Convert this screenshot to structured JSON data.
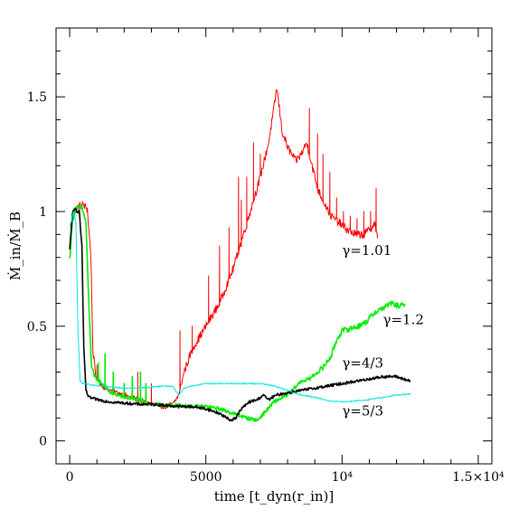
{
  "chart_data": {
    "type": "line",
    "xlabel": "time [t_dyn(r_in)]",
    "ylabel": "Ṁ_in/Ṁ_B",
    "xlim": [
      -500,
      15500
    ],
    "ylim": [
      -0.1,
      1.8
    ],
    "xticks": [
      {
        "v": 0,
        "label": "0"
      },
      {
        "v": 5000,
        "label": "5000"
      },
      {
        "v": 10000,
        "label": "10⁴"
      },
      {
        "v": 15000,
        "label": "1.5×10⁴"
      }
    ],
    "yticks": [
      {
        "v": 0,
        "label": "0"
      },
      {
        "v": 0.5,
        "label": "0.5"
      },
      {
        "v": 1,
        "label": "1"
      },
      {
        "v": 1.5,
        "label": "1.5"
      }
    ],
    "series": [
      {
        "name": "γ=1.01",
        "color": "#ff0000",
        "noise": 0.012,
        "points": [
          [
            0,
            0.79
          ],
          [
            100,
            0.99
          ],
          [
            300,
            1.02
          ],
          [
            500,
            1.03
          ],
          [
            650,
            1.01
          ],
          [
            780,
            0.8
          ],
          [
            850,
            0.4
          ],
          [
            950,
            0.28
          ],
          [
            1200,
            0.24
          ],
          [
            1500,
            0.22
          ],
          [
            2000,
            0.2
          ],
          [
            2500,
            0.18
          ],
          [
            3000,
            0.16
          ],
          [
            3500,
            0.15
          ],
          [
            3800,
            0.16
          ],
          [
            4000,
            0.2
          ],
          [
            4200,
            0.3
          ],
          [
            4500,
            0.4
          ],
          [
            5000,
            0.5
          ],
          [
            5500,
            0.6
          ],
          [
            6000,
            0.75
          ],
          [
            6500,
            0.95
          ],
          [
            7000,
            1.15
          ],
          [
            7300,
            1.3
          ],
          [
            7500,
            1.45
          ],
          [
            7600,
            1.54
          ],
          [
            7700,
            1.45
          ],
          [
            7800,
            1.35
          ],
          [
            8000,
            1.28
          ],
          [
            8300,
            1.22
          ],
          [
            8500,
            1.25
          ],
          [
            8700,
            1.3
          ],
          [
            8900,
            1.2
          ],
          [
            9100,
            1.1
          ],
          [
            9300,
            1.05
          ],
          [
            9600,
            0.98
          ],
          [
            9900,
            0.95
          ],
          [
            10200,
            0.92
          ],
          [
            10500,
            0.9
          ],
          [
            10800,
            0.9
          ],
          [
            11000,
            0.92
          ],
          [
            11200,
            0.95
          ],
          [
            11300,
            0.88
          ]
        ],
        "spikes": [
          [
            1000,
            0.33
          ],
          [
            1300,
            0.37
          ],
          [
            2500,
            0.3
          ],
          [
            2600,
            0.28
          ],
          [
            3000,
            0.25
          ],
          [
            4050,
            0.48
          ],
          [
            4500,
            0.5
          ],
          [
            5100,
            0.72
          ],
          [
            5500,
            0.85
          ],
          [
            5850,
            0.93
          ],
          [
            6200,
            1.15
          ],
          [
            6300,
            1.05
          ],
          [
            6500,
            1.15
          ],
          [
            6750,
            1.3
          ],
          [
            7000,
            1.25
          ],
          [
            8800,
            1.45
          ],
          [
            9100,
            1.34
          ],
          [
            9300,
            1.25
          ],
          [
            9550,
            1.17
          ],
          [
            9800,
            1.06
          ],
          [
            10050,
            1.0
          ],
          [
            10300,
            0.98
          ],
          [
            10550,
            0.97
          ],
          [
            10800,
            1.0
          ],
          [
            11050,
            1.0
          ],
          [
            11250,
            1.1
          ]
        ]
      },
      {
        "name": "γ=1.2",
        "color": "#00ee00",
        "noise": 0.008,
        "points": [
          [
            0,
            0.79
          ],
          [
            100,
            0.97
          ],
          [
            250,
            1.01
          ],
          [
            450,
            1.02
          ],
          [
            600,
            0.95
          ],
          [
            700,
            0.6
          ],
          [
            800,
            0.33
          ],
          [
            900,
            0.28
          ],
          [
            1200,
            0.25
          ],
          [
            1500,
            0.21
          ],
          [
            2000,
            0.19
          ],
          [
            2500,
            0.18
          ],
          [
            3000,
            0.16
          ],
          [
            3500,
            0.155
          ],
          [
            4000,
            0.155
          ],
          [
            4500,
            0.15
          ],
          [
            5000,
            0.15
          ],
          [
            5500,
            0.14
          ],
          [
            6000,
            0.12
          ],
          [
            6500,
            0.1
          ],
          [
            6900,
            0.09
          ],
          [
            7200,
            0.13
          ],
          [
            7500,
            0.17
          ],
          [
            8000,
            0.2
          ],
          [
            8500,
            0.26
          ],
          [
            8800,
            0.27
          ],
          [
            9000,
            0.29
          ],
          [
            9300,
            0.32
          ],
          [
            9600,
            0.37
          ],
          [
            9800,
            0.44
          ],
          [
            10000,
            0.48
          ],
          [
            10300,
            0.49
          ],
          [
            10600,
            0.5
          ],
          [
            10900,
            0.52
          ],
          [
            11200,
            0.56
          ],
          [
            11500,
            0.58
          ],
          [
            11800,
            0.6
          ],
          [
            12000,
            0.59
          ],
          [
            12300,
            0.59
          ]
        ],
        "spikes": [
          [
            1050,
            0.34
          ],
          [
            1300,
            0.38
          ],
          [
            1600,
            0.3
          ],
          [
            2000,
            0.25
          ],
          [
            2300,
            0.28
          ],
          [
            2600,
            0.3
          ],
          [
            2800,
            0.25
          ]
        ]
      },
      {
        "name": "γ=4/3",
        "color": "#000000",
        "noise": 0.006,
        "points": [
          [
            0,
            0.83
          ],
          [
            100,
            0.99
          ],
          [
            200,
            1.01
          ],
          [
            350,
            1.0
          ],
          [
            450,
            0.85
          ],
          [
            520,
            0.4
          ],
          [
            600,
            0.22
          ],
          [
            700,
            0.19
          ],
          [
            1000,
            0.18
          ],
          [
            1500,
            0.17
          ],
          [
            2000,
            0.165
          ],
          [
            2500,
            0.16
          ],
          [
            3000,
            0.16
          ],
          [
            3500,
            0.155
          ],
          [
            4000,
            0.15
          ],
          [
            4500,
            0.15
          ],
          [
            5000,
            0.14
          ],
          [
            5500,
            0.12
          ],
          [
            5900,
            0.09
          ],
          [
            6100,
            0.1
          ],
          [
            6300,
            0.14
          ],
          [
            6600,
            0.17
          ],
          [
            6900,
            0.18
          ],
          [
            7100,
            0.2
          ],
          [
            7300,
            0.18
          ],
          [
            7600,
            0.2
          ],
          [
            8000,
            0.21
          ],
          [
            8500,
            0.22
          ],
          [
            9000,
            0.23
          ],
          [
            9500,
            0.24
          ],
          [
            10000,
            0.25
          ],
          [
            10500,
            0.26
          ],
          [
            11000,
            0.27
          ],
          [
            11500,
            0.28
          ],
          [
            12000,
            0.28
          ],
          [
            12500,
            0.26
          ]
        ]
      },
      {
        "name": "γ=5/3",
        "color": "#00e5e5",
        "noise": 0.003,
        "points": [
          [
            0,
            0.93
          ],
          [
            150,
            1.0
          ],
          [
            230,
            0.95
          ],
          [
            300,
            0.5
          ],
          [
            380,
            0.26
          ],
          [
            500,
            0.25
          ],
          [
            1000,
            0.24
          ],
          [
            1500,
            0.235
          ],
          [
            2000,
            0.23
          ],
          [
            2500,
            0.23
          ],
          [
            3000,
            0.235
          ],
          [
            3500,
            0.24
          ],
          [
            3800,
            0.235
          ],
          [
            4000,
            0.2
          ],
          [
            4200,
            0.23
          ],
          [
            4500,
            0.24
          ],
          [
            5000,
            0.25
          ],
          [
            5500,
            0.25
          ],
          [
            6000,
            0.25
          ],
          [
            6500,
            0.25
          ],
          [
            7000,
            0.25
          ],
          [
            7500,
            0.24
          ],
          [
            8000,
            0.22
          ],
          [
            8500,
            0.2
          ],
          [
            9000,
            0.19
          ],
          [
            9500,
            0.175
          ],
          [
            10000,
            0.17
          ],
          [
            10500,
            0.175
          ],
          [
            11000,
            0.18
          ],
          [
            11500,
            0.19
          ],
          [
            12000,
            0.2
          ],
          [
            12500,
            0.205
          ]
        ]
      }
    ],
    "annotations": [
      {
        "text": "γ=1.01",
        "x": 10000,
        "y": 0.81
      },
      {
        "text": "γ=1.2",
        "x": 11500,
        "y": 0.51
      },
      {
        "text": "γ=4/3",
        "x": 10000,
        "y": 0.32
      },
      {
        "text": "γ=5/3",
        "x": 10000,
        "y": 0.11
      }
    ]
  }
}
